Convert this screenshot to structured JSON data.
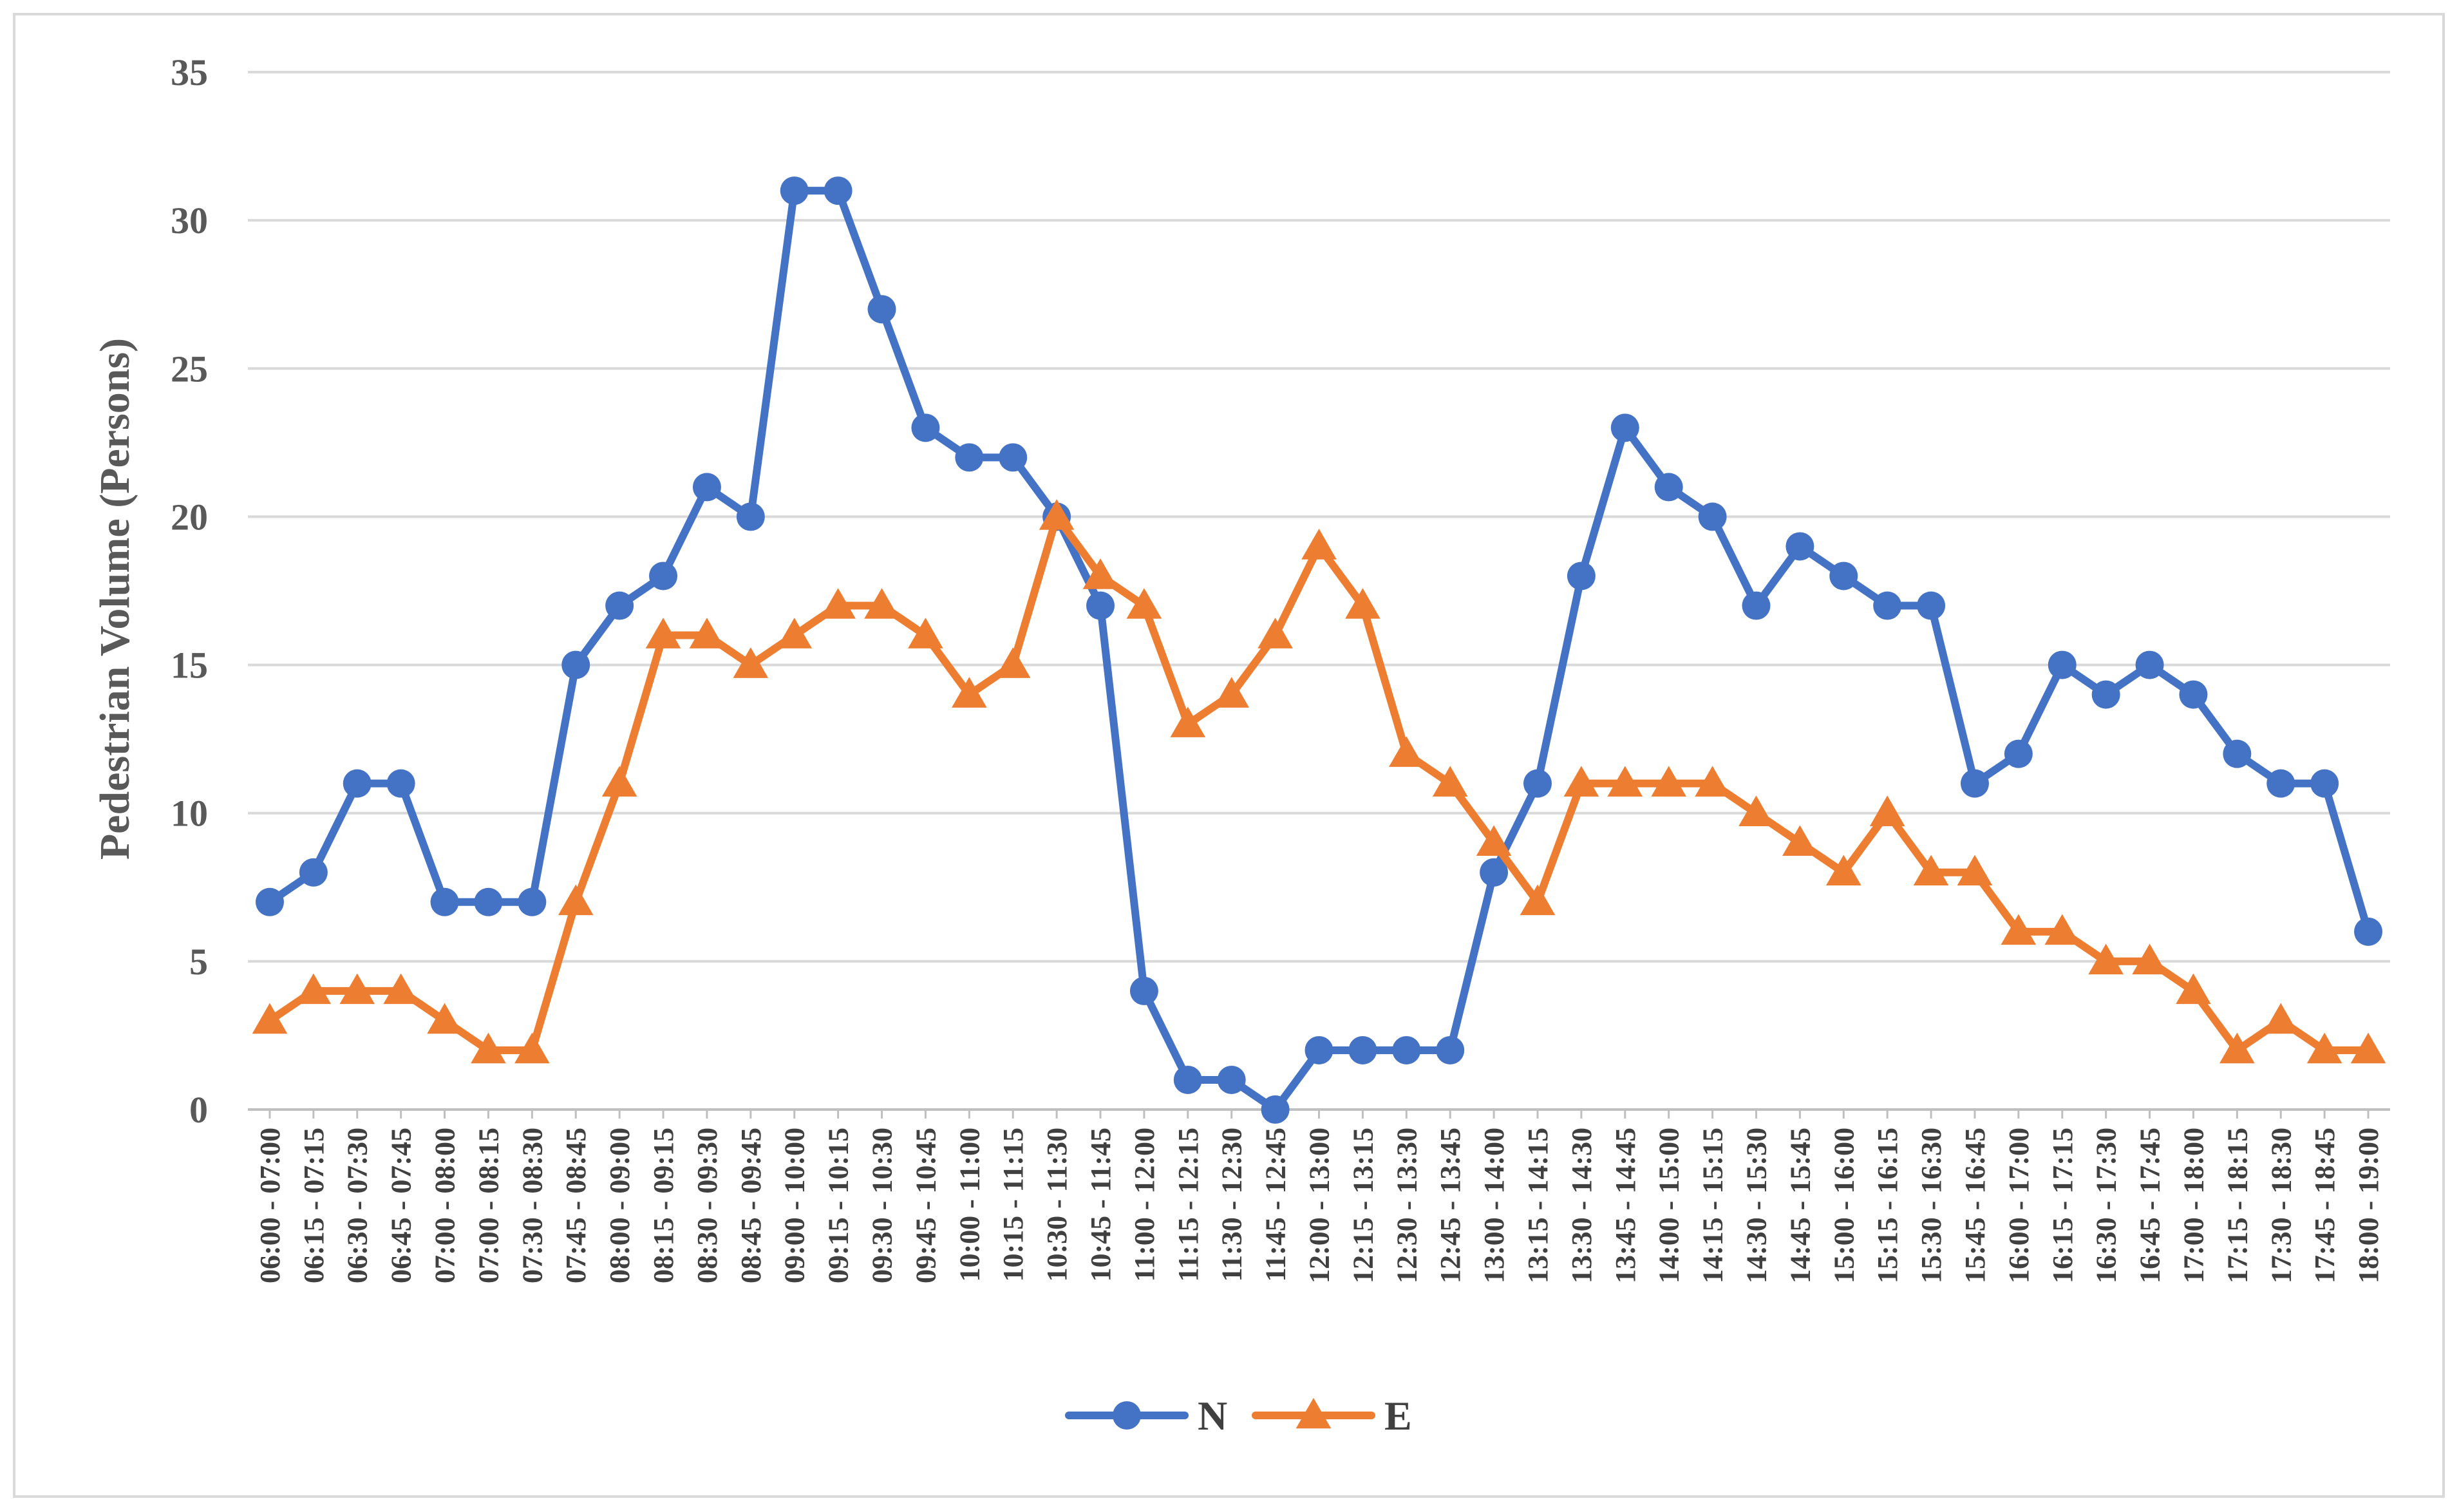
{
  "chart_data": {
    "type": "line",
    "title": "",
    "xlabel": "",
    "ylabel": "Pedestrian Volume (Persons)",
    "ylim": [
      0,
      35
    ],
    "yticks": [
      0,
      5,
      10,
      15,
      20,
      25,
      30,
      35
    ],
    "grid": "horizontal",
    "legend": "bottom",
    "categories": [
      "06:00 - 07:00",
      "06:15 - 07:15",
      "06:30 - 07:30",
      "06:45 - 07:45",
      "07:00 - 08:00",
      "07:00 - 08:15",
      "07:30 - 08:30",
      "07:45 - 08:45",
      "08:00 - 09:00",
      "08:15 - 09:15",
      "08:30 - 09:30",
      "08:45 - 09:45",
      "09:00 - 10:00",
      "09:15 - 10:15",
      "09:30 - 10:30",
      "09:45 - 10:45",
      "10:00 - 11:00",
      "10:15 - 11:15",
      "10:30 - 11:30",
      "10:45 - 11:45",
      "11:00 - 12:00",
      "11:15 - 12:15",
      "11:30 - 12:30",
      "11:45 - 12:45",
      "12:00 - 13:00",
      "12:15 - 13:15",
      "12:30 - 13:30",
      "12:45 - 13:45",
      "13:00 - 14:00",
      "13:15 - 14:15",
      "13:30 - 14:30",
      "13:45 - 14:45",
      "14:00 - 15:00",
      "14:15 - 15:15",
      "14:30 - 15:30",
      "14:45 - 15:45",
      "15:00 - 16:00",
      "15:15 - 16:15",
      "15:30 - 16:30",
      "15:45 - 16:45",
      "16:00 - 17:00",
      "16:15 - 17:15",
      "16:30 - 17:30",
      "16:45 - 17:45",
      "17:00 - 18:00",
      "17:15 - 18:15",
      "17:30 - 18:30",
      "17:45 - 18:45",
      "18:00 - 19:00"
    ],
    "series": [
      {
        "name": "N",
        "color": "#4472c4",
        "marker": "circle",
        "values": [
          7,
          8,
          11,
          11,
          7,
          7,
          7,
          15,
          17,
          18,
          21,
          20,
          31,
          31,
          27,
          23,
          22,
          22,
          20,
          17,
          4,
          1,
          1,
          0,
          2,
          2,
          2,
          2,
          8,
          11,
          18,
          23,
          21,
          20,
          17,
          19,
          18,
          17,
          17,
          11,
          12,
          15,
          14,
          15,
          14,
          12,
          11,
          11,
          6
        ]
      },
      {
        "name": "E",
        "color": "#ed7d31",
        "marker": "triangle",
        "values": [
          3,
          4,
          4,
          4,
          3,
          2,
          2,
          7,
          11,
          16,
          16,
          15,
          16,
          17,
          17,
          16,
          14,
          15,
          20,
          18,
          17,
          13,
          14,
          16,
          19,
          17,
          12,
          11,
          9,
          7,
          11,
          11,
          11,
          11,
          10,
          9,
          8,
          10,
          8,
          8,
          6,
          6,
          5,
          5,
          4,
          2,
          3,
          2,
          2
        ]
      }
    ]
  }
}
